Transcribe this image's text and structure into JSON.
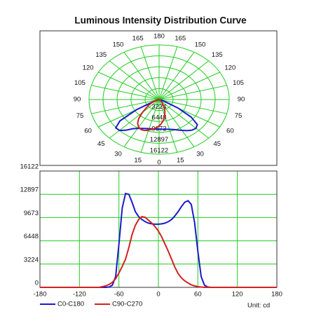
{
  "chart_data": [
    {
      "type": "polar",
      "title": "Luminous Intensity Distribution Curve",
      "angle_ticks": [
        0,
        15,
        30,
        45,
        60,
        75,
        90,
        105,
        120,
        135,
        150,
        165,
        180
      ],
      "rlim": [
        0,
        16122
      ],
      "rticks": [
        3224,
        6448,
        9673,
        12897,
        16122
      ],
      "grid": true,
      "grid_color": "#22cc22"
    },
    {
      "type": "line",
      "x": [
        -180,
        -90,
        -80,
        -75,
        -70,
        -65,
        -60,
        -55,
        -50,
        -45,
        -40,
        -35,
        -30,
        -25,
        -20,
        -15,
        -10,
        -5,
        0,
        5,
        10,
        15,
        20,
        25,
        30,
        35,
        40,
        45,
        50,
        55,
        60,
        65,
        70,
        75,
        80,
        90,
        180
      ],
      "series": [
        {
          "name": "C0-C180",
          "color": "#1a1acc",
          "values": [
            0,
            0,
            0,
            50,
            300,
            1500,
            6000,
            11000,
            13000,
            12900,
            11800,
            10500,
            9800,
            9400,
            9100,
            8900,
            8800,
            8750,
            8750,
            8800,
            8900,
            9100,
            9400,
            9900,
            10500,
            11200,
            11800,
            12000,
            11500,
            9000,
            5000,
            1500,
            300,
            50,
            0,
            0,
            0
          ]
        },
        {
          "name": "C90-C270",
          "color": "#d42020",
          "values": [
            0,
            0,
            200,
            400,
            700,
            1200,
            2000,
            2900,
            3900,
            5500,
            7300,
            8600,
            9400,
            9800,
            9700,
            9300,
            8900,
            8400,
            7800,
            7000,
            6000,
            5000,
            3900,
            2800,
            1900,
            1300,
            900,
            600,
            350,
            200,
            100,
            50,
            0,
            0,
            0,
            0,
            0
          ]
        }
      ],
      "xlim": [
        -180,
        180
      ],
      "xticks": [
        -180,
        -120,
        -60,
        0,
        60,
        120,
        180
      ],
      "ylim": [
        0,
        16122
      ],
      "yticks": [
        0,
        3224,
        6448,
        9673,
        12897,
        16122
      ],
      "grid": true,
      "grid_color": "#22cc22",
      "legend": "bottom-left",
      "unit_label": "Unit: cd"
    }
  ]
}
